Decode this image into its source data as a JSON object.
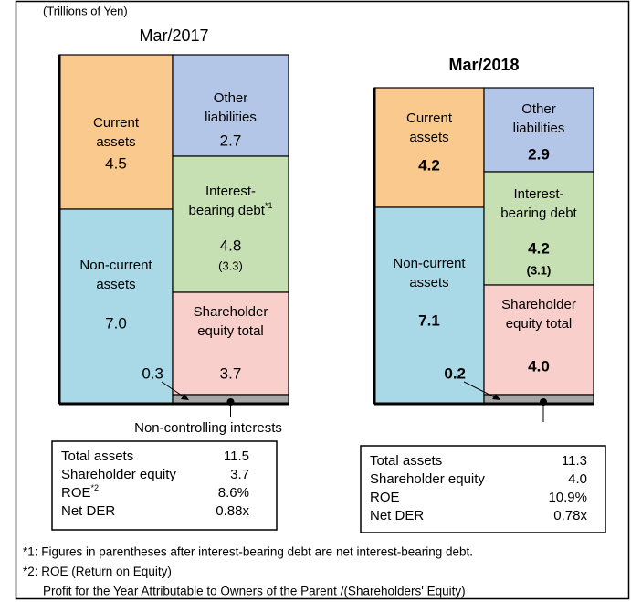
{
  "unit_note": "(Trillions of Yen)",
  "panels": [
    {
      "title": "Mar/2017",
      "current_assets": {
        "label": [
          "Current",
          "assets"
        ],
        "value": "4.5"
      },
      "non_current_assets": {
        "label": [
          "Non-current",
          "assets"
        ],
        "value": "7.0"
      },
      "other_liabilities": {
        "label": [
          "Other",
          "liabilities"
        ],
        "value": "2.7"
      },
      "interest_bearing_debt": {
        "label": [
          "Interest-",
          "bearing debt"
        ],
        "note": "*1",
        "value": "4.8",
        "net": "(3.3)"
      },
      "shareholder_equity": {
        "label": [
          "Shareholder",
          "equity total"
        ],
        "value": "3.7"
      },
      "non_controlling": {
        "value": "0.3",
        "label": "Non-controlling  interests"
      },
      "table": [
        {
          "label": "Total assets",
          "value": "11.5"
        },
        {
          "label": "Shareholder equity",
          "value": "3.7"
        },
        {
          "label": "ROE",
          "note": "*2",
          "value": "8.6%"
        },
        {
          "label": "Net DER",
          "value": "0.88x"
        }
      ]
    },
    {
      "title": "Mar/2018",
      "current_assets": {
        "label": [
          "Current",
          "assets"
        ],
        "value": "4.2"
      },
      "non_current_assets": {
        "label": [
          "Non-current",
          "assets"
        ],
        "value": "7.1"
      },
      "other_liabilities": {
        "label": [
          "Other",
          "liabilities"
        ],
        "value": "2.9"
      },
      "interest_bearing_debt": {
        "label": [
          "Interest-",
          "bearing debt"
        ],
        "value": "4.2",
        "net": "(3.1)"
      },
      "shareholder_equity": {
        "label": [
          "Shareholder",
          "equity total"
        ],
        "value": "4.0"
      },
      "non_controlling": {
        "value": "0.2"
      },
      "table": [
        {
          "label": "Total assets",
          "value": "11.3"
        },
        {
          "label": "Shareholder equity",
          "value": "4.0"
        },
        {
          "label": "ROE",
          "value": "10.9%"
        },
        {
          "label": "Net DER",
          "value": "0.78x"
        }
      ]
    }
  ],
  "footnotes": [
    "*1: Figures in parentheses after interest-bearing debt are net interest-bearing debt.",
    "*2: ROE (Return on Equity)",
    "Profit for the Year Attributable to Owners of the Parent /(Shareholders' Equity)"
  ]
}
